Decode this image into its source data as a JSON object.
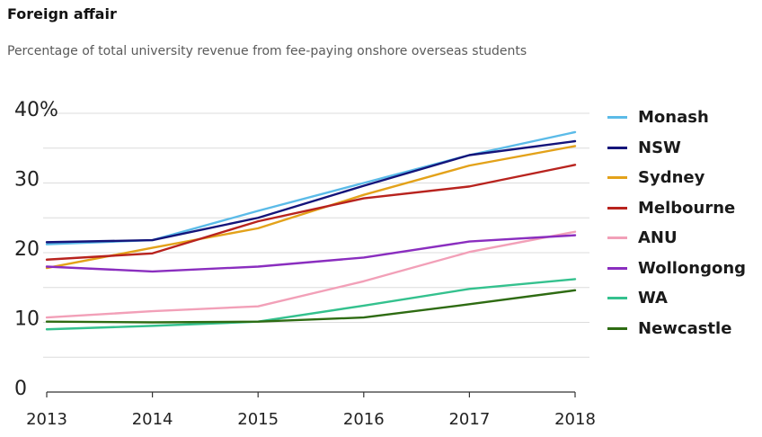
{
  "title": "Foreign affair",
  "subtitle": "Percentage of total university revenue from fee-paying onshore overseas students",
  "chart_data": {
    "type": "line",
    "title": "Foreign affair",
    "subtitle": "Percentage of total university revenue from fee-paying onshore overseas students",
    "xlabel": "",
    "ylabel": "",
    "x": [
      2013,
      2014,
      2015,
      2016,
      2017,
      2018
    ],
    "x_tick_labels": [
      "2013",
      "2014",
      "2015",
      "2016",
      "2017",
      "2018"
    ],
    "y_ticks": [
      0,
      10,
      20,
      30,
      40
    ],
    "y_tick_labels": [
      "0",
      "10",
      "20",
      "30",
      "40%"
    ],
    "ylim": [
      0,
      40
    ],
    "grid": true,
    "legend_position": "right",
    "series": [
      {
        "name": "Monash",
        "color": "#5bbbe8",
        "values": [
          21.2,
          21.8,
          26.0,
          30.0,
          34.0,
          37.3
        ]
      },
      {
        "name": "NSW",
        "color": "#14147a",
        "values": [
          21.5,
          21.8,
          25.0,
          29.6,
          34.0,
          36.0
        ]
      },
      {
        "name": "Sydney",
        "color": "#e3a21a",
        "values": [
          17.8,
          20.7,
          23.5,
          28.3,
          32.5,
          35.3
        ]
      },
      {
        "name": "Melbourne",
        "color": "#b8231e",
        "values": [
          19.0,
          19.9,
          24.5,
          27.8,
          29.5,
          32.6
        ]
      },
      {
        "name": "ANU",
        "color": "#f2a0b8",
        "values": [
          10.7,
          11.6,
          12.3,
          15.9,
          20.1,
          23.0
        ]
      },
      {
        "name": "Wollongong",
        "color": "#8a2ebf",
        "values": [
          18.0,
          17.3,
          18.0,
          19.3,
          21.6,
          22.5
        ]
      },
      {
        "name": "WA",
        "color": "#34c18e",
        "values": [
          9.0,
          9.5,
          10.1,
          12.4,
          14.8,
          16.2
        ]
      },
      {
        "name": "Newcastle",
        "color": "#2e6b12",
        "values": [
          10.1,
          10.0,
          10.1,
          10.7,
          12.6,
          14.6
        ]
      }
    ]
  }
}
